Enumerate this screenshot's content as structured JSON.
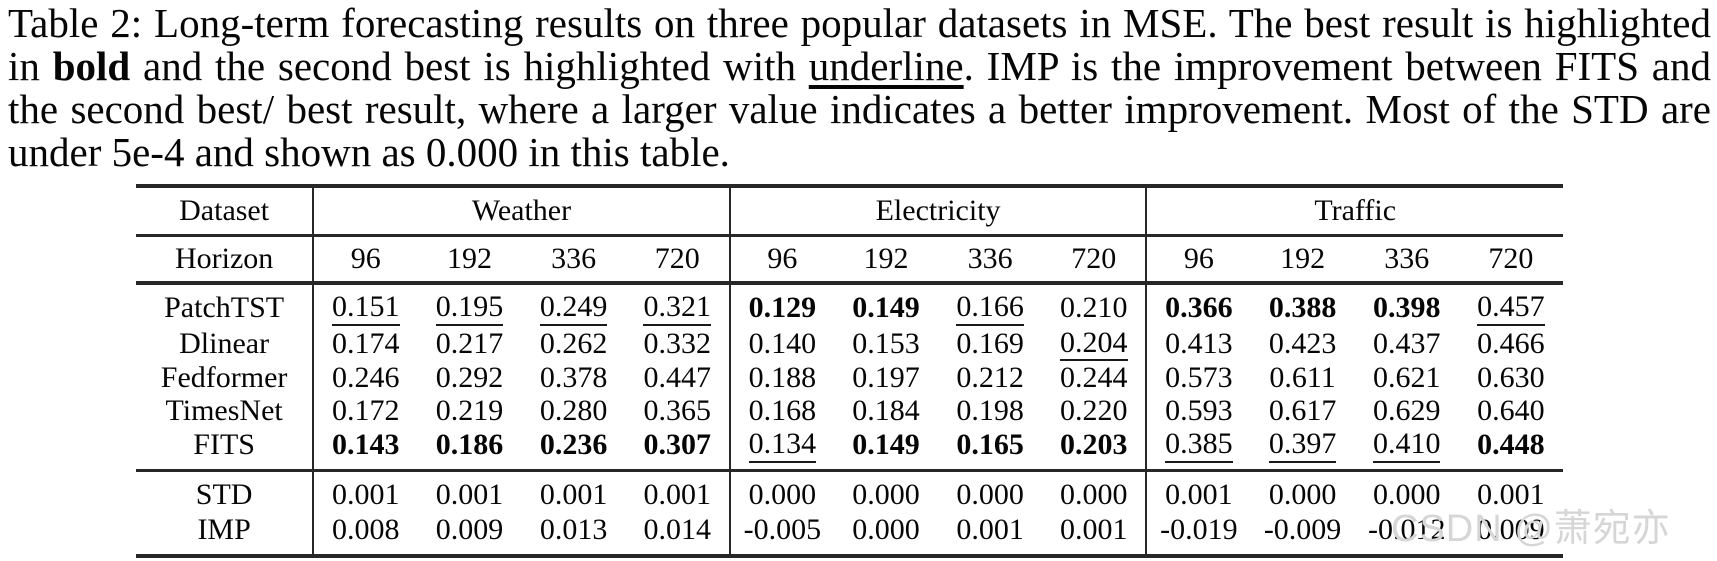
{
  "caption": {
    "segments": [
      {
        "text": "Table 2: Long-term forecasting results on three popular datasets in MSE. The best result is highlighted in ",
        "style": "normal"
      },
      {
        "text": "bold",
        "style": "bold"
      },
      {
        "text": " and the second best is highlighted with ",
        "style": "normal"
      },
      {
        "text": "underline",
        "style": "underline"
      },
      {
        "text": ". IMP is the improvement between FITS and the second best/ best result, where a larger value indicates a better improvement. Most of the STD are under 5e-4 and shown as 0.000 in this table.",
        "style": "normal"
      }
    ]
  },
  "table": {
    "dataset_label": "Dataset",
    "horizon_label": "Horizon",
    "groups": [
      {
        "name": "Weather",
        "horizons": [
          "96",
          "192",
          "336",
          "720"
        ]
      },
      {
        "name": "Electricity",
        "horizons": [
          "96",
          "192",
          "336",
          "720"
        ]
      },
      {
        "name": "Traffic",
        "horizons": [
          "96",
          "192",
          "336",
          "720"
        ]
      }
    ],
    "style_legend": {
      "b": "best (bold)",
      "u": "second best (underline)",
      "": "plain"
    },
    "model_rows": [
      {
        "label": "PatchTST",
        "cells": [
          {
            "v": "0.151",
            "s": "u"
          },
          {
            "v": "0.195",
            "s": "u"
          },
          {
            "v": "0.249",
            "s": "u"
          },
          {
            "v": "0.321",
            "s": "u"
          },
          {
            "v": "0.129",
            "s": "b"
          },
          {
            "v": "0.149",
            "s": "b"
          },
          {
            "v": "0.166",
            "s": "u"
          },
          {
            "v": "0.210",
            "s": ""
          },
          {
            "v": "0.366",
            "s": "b"
          },
          {
            "v": "0.388",
            "s": "b"
          },
          {
            "v": "0.398",
            "s": "b"
          },
          {
            "v": "0.457",
            "s": "u"
          }
        ]
      },
      {
        "label": "Dlinear",
        "cells": [
          {
            "v": "0.174",
            "s": ""
          },
          {
            "v": "0.217",
            "s": ""
          },
          {
            "v": "0.262",
            "s": ""
          },
          {
            "v": "0.332",
            "s": ""
          },
          {
            "v": "0.140",
            "s": ""
          },
          {
            "v": "0.153",
            "s": ""
          },
          {
            "v": "0.169",
            "s": ""
          },
          {
            "v": "0.204",
            "s": "u"
          },
          {
            "v": "0.413",
            "s": ""
          },
          {
            "v": "0.423",
            "s": ""
          },
          {
            "v": "0.437",
            "s": ""
          },
          {
            "v": "0.466",
            "s": ""
          }
        ]
      },
      {
        "label": "Fedformer",
        "cells": [
          {
            "v": "0.246",
            "s": ""
          },
          {
            "v": "0.292",
            "s": ""
          },
          {
            "v": "0.378",
            "s": ""
          },
          {
            "v": "0.447",
            "s": ""
          },
          {
            "v": "0.188",
            "s": ""
          },
          {
            "v": "0.197",
            "s": ""
          },
          {
            "v": "0.212",
            "s": ""
          },
          {
            "v": "0.244",
            "s": ""
          },
          {
            "v": "0.573",
            "s": ""
          },
          {
            "v": "0.611",
            "s": ""
          },
          {
            "v": "0.621",
            "s": ""
          },
          {
            "v": "0.630",
            "s": ""
          }
        ]
      },
      {
        "label": "TimesNet",
        "cells": [
          {
            "v": "0.172",
            "s": ""
          },
          {
            "v": "0.219",
            "s": ""
          },
          {
            "v": "0.280",
            "s": ""
          },
          {
            "v": "0.365",
            "s": ""
          },
          {
            "v": "0.168",
            "s": ""
          },
          {
            "v": "0.184",
            "s": ""
          },
          {
            "v": "0.198",
            "s": ""
          },
          {
            "v": "0.220",
            "s": ""
          },
          {
            "v": "0.593",
            "s": ""
          },
          {
            "v": "0.617",
            "s": ""
          },
          {
            "v": "0.629",
            "s": ""
          },
          {
            "v": "0.640",
            "s": ""
          }
        ]
      },
      {
        "label": "FITS",
        "cells": [
          {
            "v": "0.143",
            "s": "b"
          },
          {
            "v": "0.186",
            "s": "b"
          },
          {
            "v": "0.236",
            "s": "b"
          },
          {
            "v": "0.307",
            "s": "b"
          },
          {
            "v": "0.134",
            "s": "u"
          },
          {
            "v": "0.149",
            "s": "b"
          },
          {
            "v": "0.165",
            "s": "b"
          },
          {
            "v": "0.203",
            "s": "b"
          },
          {
            "v": "0.385",
            "s": "u"
          },
          {
            "v": "0.397",
            "s": "u"
          },
          {
            "v": "0.410",
            "s": "u"
          },
          {
            "v": "0.448",
            "s": "b"
          }
        ]
      }
    ],
    "stat_rows": [
      {
        "label": "STD",
        "cells": [
          {
            "v": "0.001",
            "s": ""
          },
          {
            "v": "0.001",
            "s": ""
          },
          {
            "v": "0.001",
            "s": ""
          },
          {
            "v": "0.001",
            "s": ""
          },
          {
            "v": "0.000",
            "s": ""
          },
          {
            "v": "0.000",
            "s": ""
          },
          {
            "v": "0.000",
            "s": ""
          },
          {
            "v": "0.000",
            "s": ""
          },
          {
            "v": "0.001",
            "s": ""
          },
          {
            "v": "0.000",
            "s": ""
          },
          {
            "v": "0.000",
            "s": ""
          },
          {
            "v": "0.001",
            "s": ""
          }
        ]
      },
      {
        "label": "IMP",
        "cells": [
          {
            "v": "0.008",
            "s": ""
          },
          {
            "v": "0.009",
            "s": ""
          },
          {
            "v": "0.013",
            "s": ""
          },
          {
            "v": "0.014",
            "s": ""
          },
          {
            "v": "-0.005",
            "s": ""
          },
          {
            "v": "0.000",
            "s": ""
          },
          {
            "v": "0.001",
            "s": ""
          },
          {
            "v": "0.001",
            "s": ""
          },
          {
            "v": "-0.019",
            "s": ""
          },
          {
            "v": "-0.009",
            "s": ""
          },
          {
            "v": "-0.012",
            "s": ""
          },
          {
            "v": "0.009",
            "s": ""
          }
        ]
      }
    ]
  },
  "watermark": {
    "text": "CSDN @萧宛亦",
    "color": "#d6d6d6"
  }
}
